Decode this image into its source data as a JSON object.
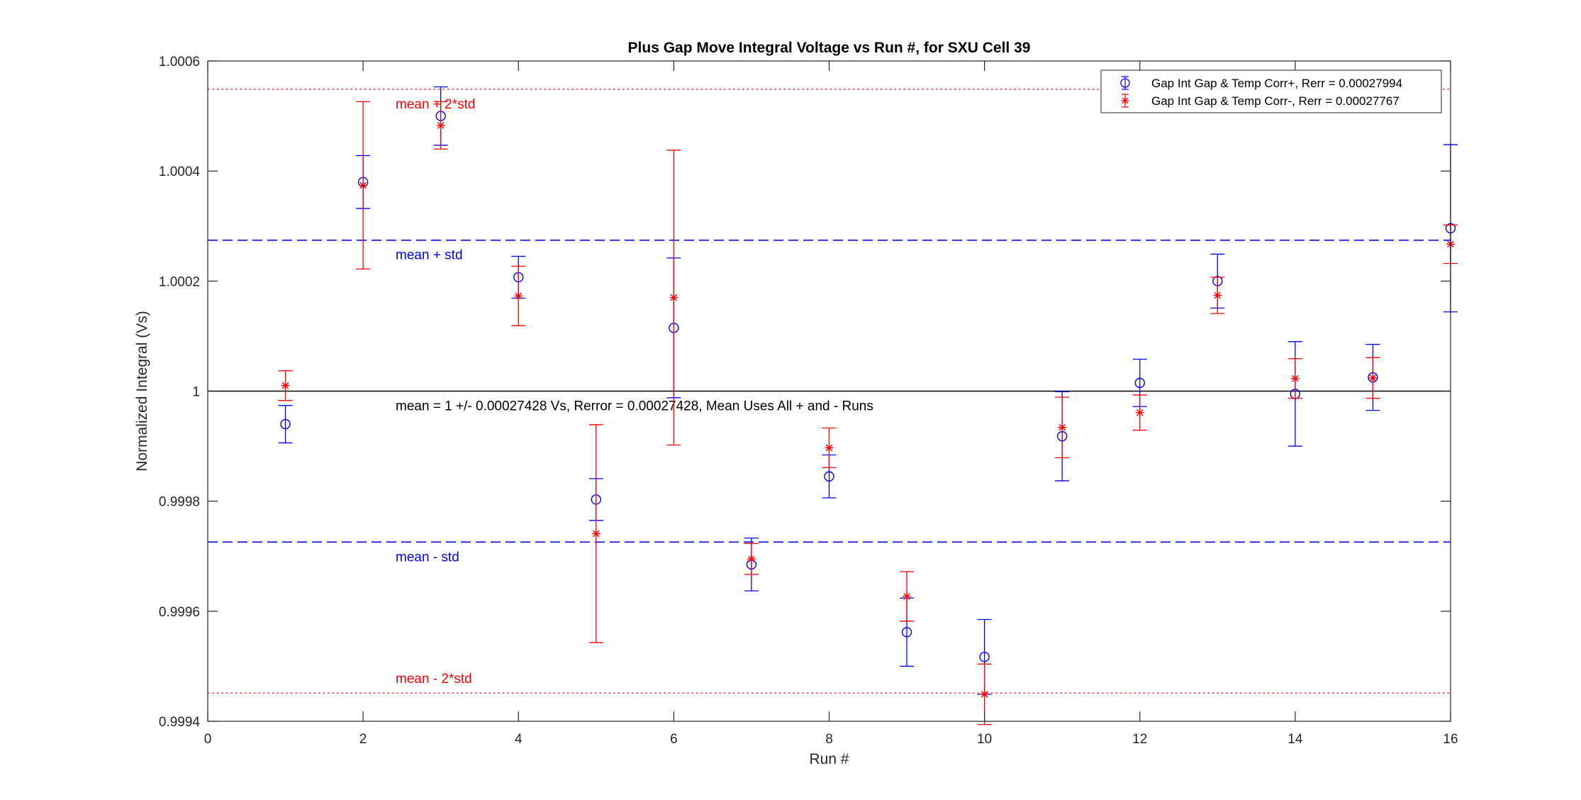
{
  "chart_data": {
    "type": "scatter",
    "title": "Plus Gap Move Integral Voltage vs Run #, for SXU Cell 39",
    "xlabel": "Run #",
    "ylabel": "Normalized Integral (Vs)",
    "xlim": [
      0,
      16
    ],
    "ylim": [
      0.9994,
      1.0006
    ],
    "xticks": [
      0,
      2,
      4,
      6,
      8,
      10,
      12,
      14,
      16
    ],
    "xtick_labels": [
      "0",
      "2",
      "4",
      "6",
      "8",
      "10",
      "12",
      "14",
      "16"
    ],
    "yticks": [
      0.9994,
      0.9996,
      0.9998,
      1.0,
      1.0002,
      1.0004,
      1.0006
    ],
    "ytick_labels": [
      "0.9994",
      "0.9996",
      "0.9998",
      "1",
      "1.0002",
      "1.0004",
      "1.0006"
    ],
    "grid": false,
    "legend_position": "top-right",
    "colors": {
      "plus": "#0000ff",
      "minus": "#ff0000",
      "mean": "#000000"
    },
    "series": [
      {
        "name": "Gap Int Gap & Temp Corr+, Rerr = 0.00027994",
        "marker": "circle",
        "color": "#0000ff",
        "x": [
          1,
          2,
          3,
          4,
          5,
          6,
          7,
          8,
          9,
          10,
          11,
          12,
          13,
          14,
          15,
          16
        ],
        "y": [
          0.99994,
          1.00038,
          1.0005,
          1.000207,
          0.999803,
          1.000115,
          0.999685,
          0.999845,
          0.999562,
          0.999517,
          0.999918,
          1.000015,
          1.0002,
          0.999995,
          1.000025,
          1.000296
        ],
        "err": [
          3.4e-05,
          4.8e-05,
          5.3e-05,
          3.8e-05,
          3.8e-05,
          0.000127,
          4.8e-05,
          3.9e-05,
          6.2e-05,
          6.8e-05,
          8.1e-05,
          4.3e-05,
          4.9e-05,
          9.5e-05,
          6e-05,
          0.000152
        ]
      },
      {
        "name": "Gap Int Gap & Temp  Corr-, Rerr = 0.00027767",
        "marker": "asterisk",
        "color": "#ff0000",
        "x": [
          1,
          2,
          3,
          4,
          5,
          6,
          7,
          8,
          9,
          10,
          11,
          12,
          13,
          14,
          15,
          16
        ],
        "y": [
          1.00001,
          1.000374,
          1.000483,
          1.000173,
          0.999741,
          1.00017,
          0.999695,
          0.999897,
          0.999627,
          0.999449,
          0.999934,
          0.999961,
          1.000174,
          1.000023,
          1.000024,
          1.000267
        ],
        "err": [
          2.7e-05,
          0.000152,
          4.3e-05,
          5.4e-05,
          0.000198,
          0.000268,
          2.8e-05,
          3.6e-05,
          4.5e-05,
          5.5e-05,
          5.5e-05,
          3.2e-05,
          3.3e-05,
          3.6e-05,
          3.7e-05,
          3.5e-05
        ]
      }
    ],
    "reference_lines": [
      {
        "y": 1.0,
        "label": "mean = 1 +/- 0.00027428 Vs, Rerror = 0.00027428, Mean Uses All + and - Runs",
        "style": "solid",
        "color": "#000000"
      },
      {
        "y": 1.00027428,
        "label": "mean + std",
        "style": "dashed",
        "color": "#0000ff"
      },
      {
        "y": 0.99972572,
        "label": "mean - std",
        "style": "dashed",
        "color": "#0000ff"
      },
      {
        "y": 1.00054856,
        "label": "mean + 2*std",
        "style": "dotted",
        "color": "#ff0000"
      },
      {
        "y": 0.99945144,
        "label": "mean - 2*std",
        "style": "dotted",
        "color": "#ff0000"
      }
    ]
  }
}
